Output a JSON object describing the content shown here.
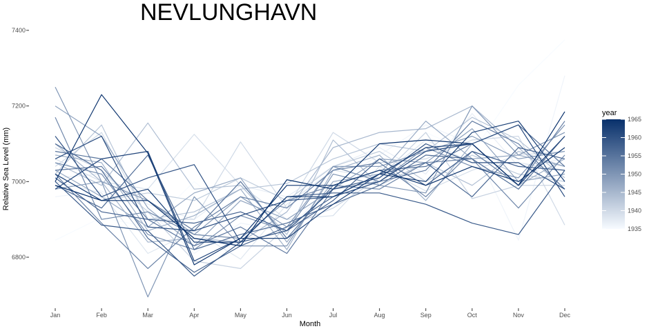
{
  "chart_data": {
    "type": "line",
    "title": "NEVLUNGHAVN",
    "xlabel": "Month",
    "ylabel": "Relative Sea Level (mm)",
    "categories": [
      "Jan",
      "Feb",
      "Mar",
      "Apr",
      "May",
      "Jun",
      "Jul",
      "Aug",
      "Sep",
      "Oct",
      "Nov",
      "Dec"
    ],
    "yticks": [
      6800,
      7000,
      7200,
      7400
    ],
    "ylim": [
      6695,
      7410
    ],
    "grid": false,
    "legend": {
      "title": "year",
      "position": "right",
      "type": "colorbar",
      "range": [
        1935,
        1965
      ],
      "ticks": [
        1935,
        1940,
        1945,
        1950,
        1955,
        1960,
        1965
      ],
      "color_low": "#f7fbff",
      "color_high": "#08306b"
    },
    "series": [
      {
        "year": 1935,
        "values": [
          6845,
          6905,
          6880,
          7000,
          6900,
          6915,
          6960,
          7010,
          7130,
          7075,
          7255,
          7375
        ]
      },
      {
        "year": 1936,
        "values": [
          6960,
          6975,
          6925,
          6810,
          6890,
          6870,
          6995,
          7070,
          7150,
          7100,
          6845,
          7280
        ]
      },
      {
        "year": 1937,
        "values": [
          7010,
          7020,
          6940,
          6900,
          6990,
          6960,
          7040,
          7090,
          7020,
          7180,
          7040,
          7060
        ]
      },
      {
        "year": 1938,
        "values": [
          7000,
          6970,
          6810,
          6870,
          6795,
          6940,
          7030,
          7010,
          7110,
          7050,
          7050,
          7030
        ]
      },
      {
        "year": 1939,
        "values": [
          7060,
          7000,
          6980,
          7125,
          6990,
          6900,
          6910,
          7040,
          6975,
          7030,
          7070,
          7080
        ]
      },
      {
        "year": 1940,
        "values": [
          7040,
          7130,
          6900,
          6900,
          7105,
          6930,
          7130,
          7050,
          7060,
          7110,
          7120,
          6885
        ]
      },
      {
        "year": 1941,
        "values": [
          7090,
          7030,
          6920,
          6790,
          6770,
          6880,
          6930,
          7010,
          7130,
          6955,
          6990,
          6990
        ]
      },
      {
        "year": 1942,
        "values": [
          6990,
          6950,
          6970,
          6950,
          7010,
          6950,
          7040,
          7080,
          7000,
          7070,
          7020,
          7000
        ]
      },
      {
        "year": 1943,
        "values": [
          7020,
          7150,
          6900,
          6920,
          6980,
          6995,
          7060,
          7100,
          7080,
          7170,
          7110,
          7010
        ]
      },
      {
        "year": 1944,
        "values": [
          7050,
          6990,
          7155,
          6980,
          6990,
          6860,
          7110,
          6990,
          7050,
          6990,
          7080,
          7040
        ]
      },
      {
        "year": 1945,
        "values": [
          7100,
          7000,
          6840,
          6850,
          6840,
          6920,
          7090,
          7130,
          7140,
          7200,
          7090,
          6980
        ]
      },
      {
        "year": 1946,
        "values": [
          7070,
          7050,
          6870,
          6910,
          6980,
          6820,
          7030,
          7070,
          6950,
          7100,
          6990,
          7060
        ]
      },
      {
        "year": 1947,
        "values": [
          7030,
          6960,
          6880,
          6970,
          7010,
          6840,
          7000,
          7020,
          7160,
          7060,
          7070,
          7040
        ]
      },
      {
        "year": 1948,
        "values": [
          7200,
          7120,
          6930,
          6830,
          6950,
          6900,
          6980,
          7060,
          7050,
          7140,
          7000,
          7020
        ]
      },
      {
        "year": 1949,
        "values": [
          6980,
          7000,
          6950,
          6860,
          6960,
          6880,
          7040,
          7040,
          7080,
          7120,
          7060,
          7080
        ]
      },
      {
        "year": 1950,
        "values": [
          7250,
          7000,
          6695,
          6960,
          6830,
          6830,
          7020,
          6990,
          6970,
          7200,
          7070,
          7130
        ]
      },
      {
        "year": 1951,
        "values": [
          7050,
          7020,
          6860,
          6820,
          6910,
          6870,
          7040,
          7000,
          7090,
          7040,
          7010,
          7150
        ]
      },
      {
        "year": 1952,
        "values": [
          7170,
          6900,
          6920,
          6860,
          6850,
          6950,
          6990,
          6980,
          7050,
          7060,
          6930,
          7070
        ]
      },
      {
        "year": 1953,
        "values": [
          7020,
          6890,
          6770,
          6880,
          6960,
          6930,
          7030,
          7050,
          6960,
          7080,
          6990,
          7160
        ]
      },
      {
        "year": 1954,
        "values": [
          7030,
          7040,
          6900,
          6830,
          6880,
          6810,
          6980,
          7000,
          7030,
          7160,
          7100,
          6980
        ]
      },
      {
        "year": 1955,
        "values": [
          7080,
          7060,
          6950,
          6870,
          7000,
          6850,
          6990,
          7030,
          7040,
          7100,
          7150,
          7040
        ]
      },
      {
        "year": 1956,
        "values": [
          6990,
          6930,
          7070,
          6820,
          6860,
          6890,
          6940,
          6990,
          7070,
          7060,
          6980,
          7120
        ]
      },
      {
        "year": 1957,
        "values": [
          7100,
          7030,
          6850,
          6760,
          6830,
          6880,
          6960,
          7020,
          7050,
          6960,
          7090,
          7060
        ]
      },
      {
        "year": 1958,
        "values": [
          7010,
          6920,
          6900,
          6890,
          6920,
          6870,
          6950,
          7060,
          6990,
          7080,
          7040,
          7030
        ]
      },
      {
        "year": 1959,
        "values": [
          7000,
          6885,
          6870,
          6750,
          6840,
          6960,
          6970,
          6970,
          6940,
          6890,
          6860,
          7030
        ]
      },
      {
        "year": 1960,
        "values": [
          7120,
          6960,
          7010,
          7045,
          6840,
          6870,
          6980,
          7010,
          7100,
          7050,
          7050,
          6980
        ]
      },
      {
        "year": 1961,
        "values": [
          7060,
          7120,
          6880,
          6870,
          6910,
          6950,
          6960,
          7000,
          7080,
          7100,
          7150,
          6960
        ]
      },
      {
        "year": 1962,
        "values": [
          6980,
          7060,
          7080,
          6790,
          6850,
          6850,
          6940,
          7020,
          7090,
          7100,
          6990,
          7120
        ]
      },
      {
        "year": 1963,
        "values": [
          7020,
          6950,
          6980,
          6840,
          6840,
          6960,
          6960,
          7020,
          7000,
          7130,
          7160,
          7000
        ]
      },
      {
        "year": 1964,
        "values": [
          7000,
          7230,
          7075,
          6780,
          6850,
          6990,
          6990,
          7030,
          6990,
          7040,
          7000,
          7090
        ]
      },
      {
        "year": 1965,
        "values": [
          6990,
          6950,
          6950,
          6850,
          6830,
          7005,
          6980,
          7100,
          7110,
          7100,
          6990,
          7185
        ]
      }
    ]
  }
}
